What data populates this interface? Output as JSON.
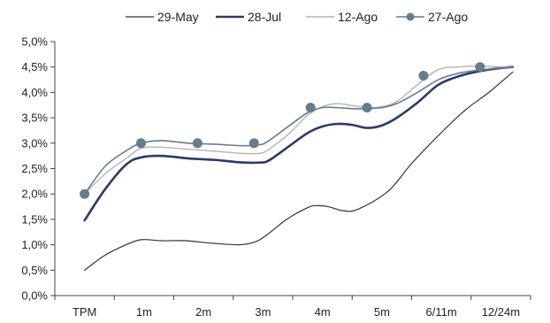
{
  "chart_data": {
    "type": "line",
    "categories": [
      "TPM",
      "1m",
      "2m",
      "3m",
      "4m",
      "5m",
      "6/11m",
      "12/24m"
    ],
    "ylim": [
      0,
      5.0
    ],
    "yticks": [
      "0,0%",
      "0,5%",
      "1,0%",
      "1,5%",
      "2,0%",
      "2,5%",
      "3,0%",
      "3,5%",
      "4,0%",
      "4,5%",
      "5,0%"
    ],
    "legend_position": "top",
    "grid": false,
    "series": [
      {
        "name": "29-May",
        "color": "#333333",
        "x": [
          0,
          0.35,
          0.7,
          0.95,
          1.3,
          1.7,
          2.15,
          2.6,
          2.85,
          3.05,
          3.4,
          3.75,
          3.9,
          4.1,
          4.35,
          4.6,
          5.1,
          5.5,
          5.95,
          6.4,
          6.8,
          7.2
        ],
        "values": [
          0.5,
          0.8,
          1.0,
          1.1,
          1.08,
          1.08,
          1.03,
          1.0,
          1.05,
          1.18,
          1.5,
          1.73,
          1.77,
          1.75,
          1.67,
          1.7,
          2.05,
          2.6,
          3.15,
          3.65,
          4.0,
          4.4
        ],
        "width": 1.2,
        "markers": false
      },
      {
        "name": "28-Jul",
        "color": "#2b3a67",
        "x": [
          0,
          0.35,
          0.7,
          0.95,
          1.3,
          1.75,
          2.2,
          2.65,
          2.95,
          3.1,
          3.45,
          3.75,
          4.0,
          4.25,
          4.5,
          4.75,
          5.0,
          5.25,
          5.6,
          5.95,
          6.3,
          6.65,
          7.0,
          7.2
        ],
        "values": [
          1.48,
          2.1,
          2.58,
          2.72,
          2.75,
          2.7,
          2.67,
          2.62,
          2.62,
          2.66,
          2.95,
          3.2,
          3.33,
          3.38,
          3.36,
          3.3,
          3.35,
          3.5,
          3.8,
          4.15,
          4.32,
          4.42,
          4.48,
          4.5
        ],
        "width": 2.6,
        "markers": false
      },
      {
        "name": "12-Ago",
        "color": "#b4b4b4",
        "x": [
          0,
          0.35,
          0.7,
          0.95,
          1.3,
          1.75,
          2.2,
          2.65,
          2.95,
          3.1,
          3.45,
          3.75,
          4.0,
          4.25,
          4.5,
          4.75,
          5.0,
          5.25,
          5.6,
          5.95,
          6.3,
          6.65,
          7.0,
          7.2
        ],
        "values": [
          2.0,
          2.4,
          2.7,
          2.9,
          2.92,
          2.88,
          2.84,
          2.8,
          2.8,
          2.88,
          3.2,
          3.55,
          3.72,
          3.78,
          3.74,
          3.7,
          3.72,
          3.82,
          4.15,
          4.45,
          4.5,
          4.52,
          4.5,
          4.5
        ],
        "width": 1.4,
        "markers": false
      },
      {
        "name": "27-Ago",
        "color": "#647d8f",
        "x": [
          0,
          0.35,
          0.7,
          0.95,
          1.3,
          1.75,
          2.2,
          2.65,
          2.95,
          3.1,
          3.45,
          3.75,
          4.0,
          4.25,
          4.5,
          4.75,
          5.0,
          5.25,
          5.6,
          5.95,
          6.3,
          6.65,
          7.0,
          7.2
        ],
        "values": [
          2.0,
          2.55,
          2.85,
          3.0,
          3.05,
          3.0,
          2.98,
          2.95,
          2.97,
          3.05,
          3.35,
          3.6,
          3.7,
          3.7,
          3.68,
          3.68,
          3.7,
          3.78,
          4.0,
          4.25,
          4.38,
          4.44,
          4.48,
          4.5
        ],
        "marker_x": [
          0,
          0.95,
          1.9,
          2.85,
          3.8,
          4.75,
          5.7,
          6.65
        ],
        "marker_values": [
          2.0,
          3.0,
          3.0,
          3.0,
          3.7,
          3.7,
          4.33,
          4.5
        ],
        "width": 1.6,
        "markers": true
      }
    ]
  }
}
